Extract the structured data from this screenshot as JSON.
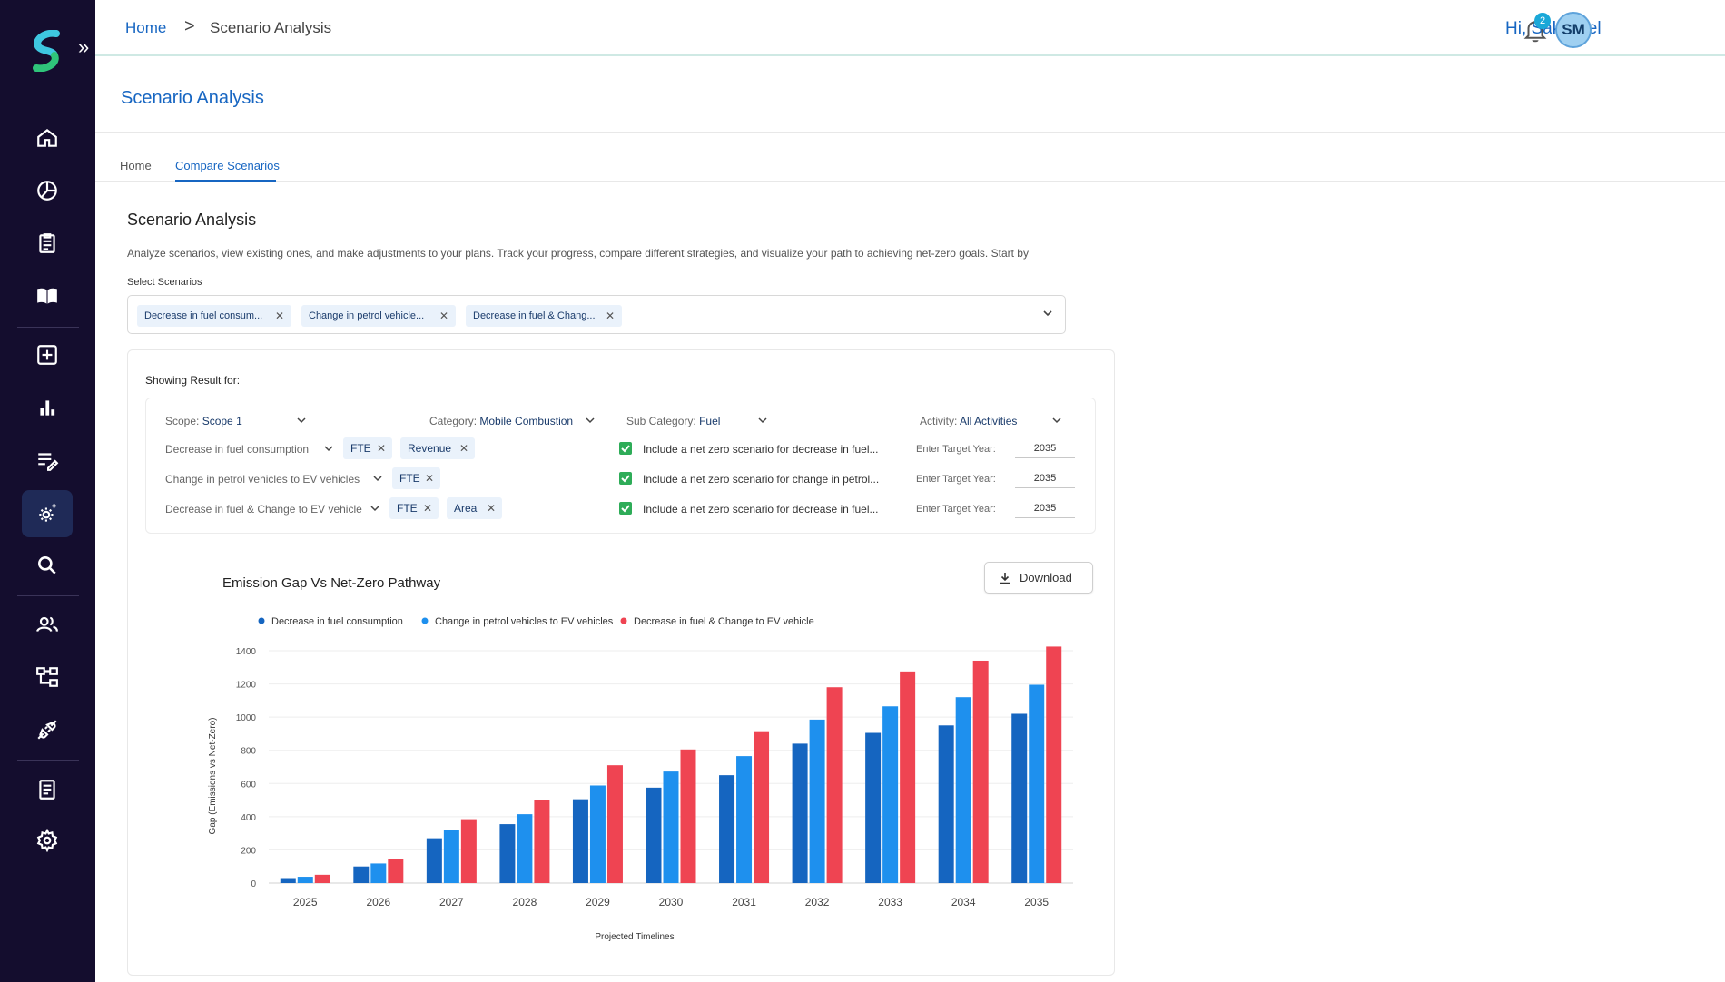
{
  "sidebar": {
    "items": [
      "home-icon",
      "dashboard-icon",
      "clipboard-icon",
      "book-icon",
      "add-box-icon",
      "bar-chart-icon",
      "edit-list-icon",
      "settings-sparkle-icon",
      "search-icon",
      "users-icon",
      "hierarchy-icon",
      "connect-icon",
      "document-icon",
      "gear-icon"
    ]
  },
  "topbar": {
    "breadcrumb_home": "Home",
    "breadcrumb_sep": ">",
    "breadcrumb_current": "Scenario Analysis",
    "greeting": "Hi, Sakthivel",
    "notification_count": "2",
    "avatar_initials": "SM"
  },
  "page": {
    "title": "Scenario Analysis",
    "tabs": [
      "Home",
      "Compare Scenarios"
    ],
    "active_tab": "Compare Scenarios"
  },
  "section": {
    "title": "Scenario Analysis",
    "description": "Analyze scenarios, view existing ones, and make adjustments to your plans. Track your progress, compare different strategies, and visualize your path to achieving net-zero goals. Start by",
    "select_label": "Select Scenarios",
    "selected": [
      "Decrease in fuel consum...",
      "Change in petrol vehicle...",
      "Decrease in fuel & Chang..."
    ]
  },
  "results": {
    "showing_label": "Showing Result for:",
    "scope_label": "Scope:",
    "scope_value": "Scope 1",
    "category_label": "Category:",
    "category_value": "Mobile Combustion",
    "subcategory_label": "Sub Category:",
    "subcategory_value": "Fuel",
    "activity_label": "Activity:",
    "activity_value": "All Activities",
    "rows": [
      {
        "scenario": "Decrease in fuel consumption",
        "tags": [
          "FTE",
          "Revenue"
        ],
        "checkbox_label": "Include a net zero scenario for decrease in fuel...",
        "target_label": "Enter Target Year:",
        "target_year": "2035"
      },
      {
        "scenario": "Change in petrol vehicles to EV vehicles",
        "tags": [
          "FTE"
        ],
        "checkbox_label": "Include a net zero scenario for change in petrol...",
        "target_label": "Enter Target Year:",
        "target_year": "2035"
      },
      {
        "scenario": "Decrease in fuel & Change to EV vehicle",
        "tags": [
          "FTE",
          "Area"
        ],
        "checkbox_label": "Include a net zero scenario for decrease in fuel...",
        "target_label": "Enter Target Year:",
        "target_year": "2035"
      }
    ]
  },
  "download_label": "Download",
  "chart_data": {
    "type": "bar",
    "title": "Emission Gap Vs Net-Zero Pathway",
    "xlabel": "Projected Timelines",
    "ylabel": "Gap (Emissions vs Net-Zero)",
    "ylim": [
      0,
      1400
    ],
    "yticks": [
      0,
      200,
      400,
      600,
      800,
      1000,
      1200,
      1400
    ],
    "grid": true,
    "legend": "top-left",
    "categories": [
      "2025",
      "2026",
      "2027",
      "2028",
      "2029",
      "2030",
      "2031",
      "2032",
      "2033",
      "2034",
      "2035"
    ],
    "series": [
      {
        "name": "Decrease in fuel consumption",
        "color": "#1565c0",
        "values": [
          30,
          100,
          270,
          355,
          505,
          575,
          650,
          840,
          905,
          950,
          1020
        ]
      },
      {
        "name": "Change in petrol vehicles to EV vehicles",
        "color": "#1e90ee",
        "values": [
          38,
          118,
          320,
          415,
          588,
          672,
          765,
          985,
          1065,
          1120,
          1195
        ]
      },
      {
        "name": "Decrease in fuel & Change to EV vehicle",
        "color": "#ef4452",
        "values": [
          50,
          145,
          385,
          498,
          710,
          805,
          915,
          1180,
          1275,
          1340,
          1425
        ]
      }
    ]
  }
}
